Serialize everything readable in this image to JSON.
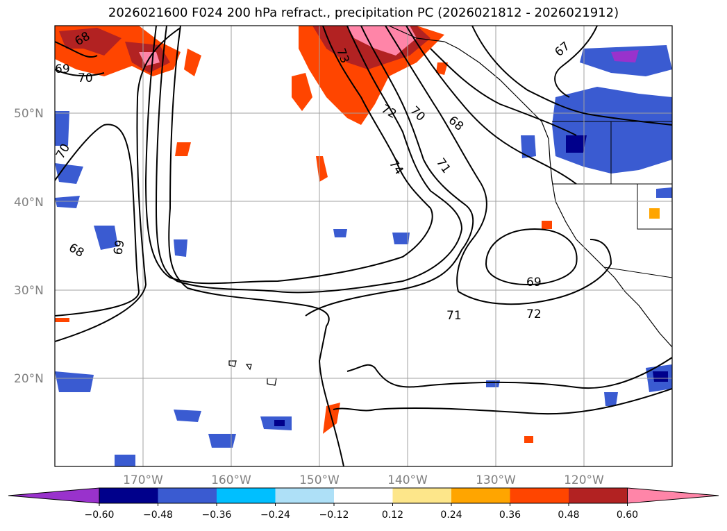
{
  "title": "2026021600 F024 200 hPa refract., precipitation PC (2026021812 - 2026021912)",
  "lat_labels": [
    "50°N",
    "40°N",
    "30°N",
    "20°N"
  ],
  "lon_labels": [
    "170°W",
    "160°W",
    "150°W",
    "140°W",
    "130°W",
    "120°W"
  ],
  "colorbar": {
    "levels": [
      "−0.60",
      "−0.48",
      "−0.36",
      "−0.24",
      "−0.12",
      "0.12",
      "0.24",
      "0.36",
      "0.48",
      "0.60"
    ],
    "colors": [
      "#9932cc",
      "#00008b",
      "#3a5bd1",
      "#00bfff",
      "#aee0f7",
      "#ffffff",
      "#fde68a",
      "#ffa500",
      "#ff4500",
      "#b22222",
      "#ff85a8"
    ]
  },
  "contour_labels": [
    "68",
    "69",
    "70",
    "73",
    "72",
    "70",
    "68",
    "67",
    "74",
    "71",
    "70",
    "68",
    "69",
    "69",
    "71",
    "72"
  ]
}
